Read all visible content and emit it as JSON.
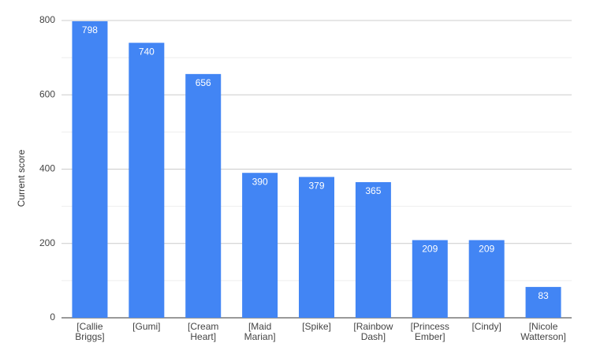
{
  "chart_data": {
    "type": "bar",
    "y_label": "Current score",
    "categories": [
      "[Callie Briggs]",
      "[Gumi]",
      "[Cream Heart]",
      "[Maid Marian]",
      "[Spike]",
      "[Rainbow Dash]",
      "[Princess Ember]",
      "[Cindy]",
      "[Nicole Watterson]"
    ],
    "values": [
      798,
      740,
      656,
      390,
      379,
      365,
      209,
      209,
      83
    ],
    "color": "#4285f4",
    "ylim": [
      0,
      800
    ],
    "yticks": [
      0,
      200,
      400,
      600,
      800
    ],
    "grid": true,
    "minor_grid": true,
    "value_labels_shown": true
  }
}
